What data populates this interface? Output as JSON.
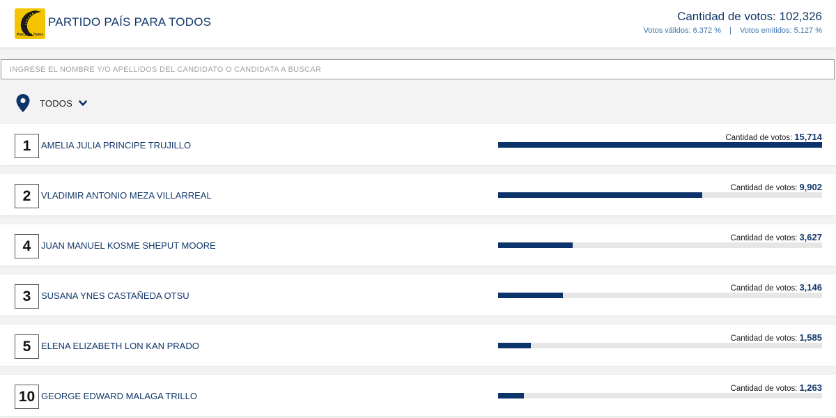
{
  "header": {
    "logo_caption": "País para Todos",
    "party_name": "PARTIDO PAÍS PARA TODOS",
    "total_label": "Cantidad de votos:",
    "total_value": "102,326",
    "valid_label": "Votos válidos:",
    "valid_value": "6.372 %",
    "separator": "|",
    "emitted_label": "Votos emitidos:",
    "emitted_value": "5.127 %"
  },
  "search": {
    "placeholder": "INGRESE EL NOMBRE Y/O APELLIDOS DEL CANDIDATO O CANDIDATA A BUSCAR",
    "value": ""
  },
  "filter": {
    "icon": "map-pin-icon",
    "label": "TODOS",
    "chevron_icon": "chevron-down-icon"
  },
  "colors": {
    "primary": "#13386a",
    "bar_fill": "#0d346a",
    "bar_track": "#e6e6e6",
    "logo_yellow": "#f5c400"
  },
  "candidates": [
    {
      "number": "1",
      "name": "AMELIA JULIA PRINCIPE TRUJILLO",
      "votes_label": "Cantidad de votos:",
      "votes": "15,714",
      "share": 1.0
    },
    {
      "number": "2",
      "name": "VLADIMIR ANTONIO MEZA VILLARREAL",
      "votes_label": "Cantidad de votos:",
      "votes": "9,902",
      "share": 0.63
    },
    {
      "number": "4",
      "name": "JUAN MANUEL KOSME SHEPUT MOORE",
      "votes_label": "Cantidad de votos:",
      "votes": "3,627",
      "share": 0.231
    },
    {
      "number": "3",
      "name": "SUSANA YNES CASTAÑEDA OTSU",
      "votes_label": "Cantidad de votos:",
      "votes": "3,146",
      "share": 0.2
    },
    {
      "number": "5",
      "name": "ELENA ELIZABETH LON KAN PRADO",
      "votes_label": "Cantidad de votos:",
      "votes": "1,585",
      "share": 0.101
    },
    {
      "number": "10",
      "name": "GEORGE EDWARD MALAGA TRILLO",
      "votes_label": "Cantidad de votos:",
      "votes": "1,263",
      "share": 0.08
    }
  ]
}
